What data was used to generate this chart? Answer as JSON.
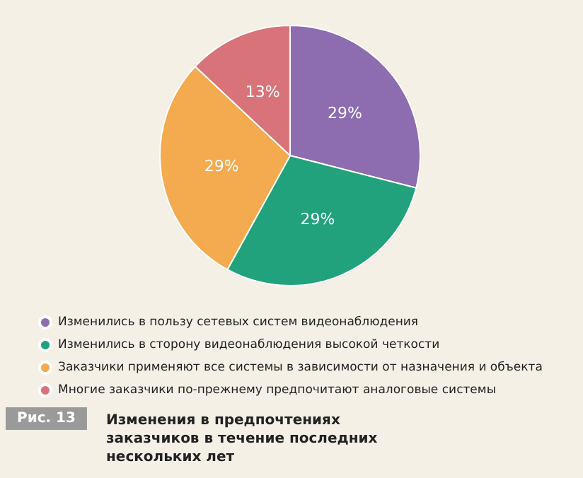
{
  "chart_data": {
    "type": "pie",
    "title": "Изменения в предпочтениях заказчиков в течение последних нескольких лет",
    "annotations": [
      "Рис. 13"
    ],
    "categories": [
      "Изменились в пользу сетевых систем видеонаблюдения",
      "Изменились в сторону видеонаблюдения высокой четкости",
      "Заказчики применяют все системы в зависимости от назначения и объекта",
      "Многие заказчики по-прежнему предпочитают аналоговые системы"
    ],
    "values": [
      29,
      29,
      29,
      13
    ],
    "value_labels": [
      "29%",
      "29%",
      "29%",
      "13%"
    ],
    "colors": [
      "#8d6cb0",
      "#22a27c",
      "#f4aa4e",
      "#d87479"
    ],
    "legend": "bottom"
  }
}
